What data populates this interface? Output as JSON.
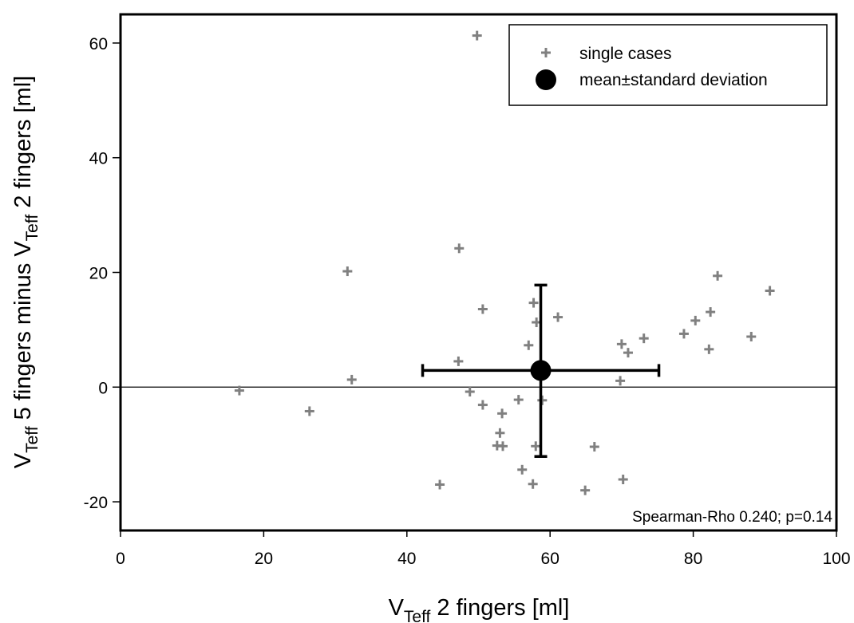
{
  "chart_data": {
    "type": "scatter",
    "xlim": [
      0,
      100
    ],
    "ylim": [
      -25,
      65
    ],
    "xticks": [
      0,
      20,
      40,
      60,
      80,
      100
    ],
    "yticks": [
      -20,
      0,
      20,
      40,
      60
    ],
    "xlabel": {
      "main": "V",
      "sub": "Teff",
      "rest": " 2 fingers [ml]"
    },
    "ylabel": {
      "main": "V",
      "sub": "Teff",
      "mid": " 5 fingers minus V",
      "sub2": "Teff",
      "rest": " 2 fingers [ml]"
    },
    "legend": {
      "position": "top-right",
      "entries": [
        {
          "label": "single cases",
          "marker": "plus",
          "color": "#808080"
        },
        {
          "label": "mean±standard deviation",
          "marker": "filled-circle",
          "color": "#000000"
        }
      ]
    },
    "annotation": "Spearman-Rho 0.240; p=0.14",
    "reference_line_y": 0,
    "series": [
      {
        "label": "single cases",
        "color": "#808080",
        "points": [
          [
            16.6,
            -0.6
          ],
          [
            26.4,
            -4.2
          ],
          [
            31.7,
            20.2
          ],
          [
            32.3,
            1.3
          ],
          [
            44.6,
            -17.0
          ],
          [
            47.2,
            4.5
          ],
          [
            47.3,
            24.2
          ],
          [
            48.8,
            -0.8
          ],
          [
            49.8,
            61.3
          ],
          [
            50.6,
            13.6
          ],
          [
            50.6,
            -3.1
          ],
          [
            52.6,
            -10.2
          ],
          [
            53.0,
            -8.0
          ],
          [
            53.3,
            -4.6
          ],
          [
            53.4,
            -10.3
          ],
          [
            55.6,
            -2.2
          ],
          [
            56.1,
            -14.4
          ],
          [
            57.0,
            7.3
          ],
          [
            57.7,
            14.7
          ],
          [
            57.6,
            -16.9
          ],
          [
            58.1,
            11.3
          ],
          [
            58.0,
            -10.3
          ],
          [
            58.9,
            -2.3
          ],
          [
            61.1,
            12.2
          ],
          [
            64.9,
            -18.0
          ],
          [
            66.2,
            -10.4
          ],
          [
            69.8,
            1.1
          ],
          [
            70.0,
            7.5
          ],
          [
            70.2,
            -16.1
          ],
          [
            70.9,
            6.0
          ],
          [
            73.1,
            8.5
          ],
          [
            78.7,
            9.3
          ],
          [
            80.3,
            11.6
          ],
          [
            82.2,
            6.6
          ],
          [
            82.4,
            13.1
          ],
          [
            83.4,
            19.4
          ],
          [
            88.1,
            8.8
          ],
          [
            90.7,
            16.8
          ]
        ]
      }
    ],
    "mean": {
      "x": 58.7,
      "y": 2.9,
      "x_range": [
        42.2,
        75.2
      ],
      "y_range": [
        -12.1,
        17.8
      ]
    }
  }
}
